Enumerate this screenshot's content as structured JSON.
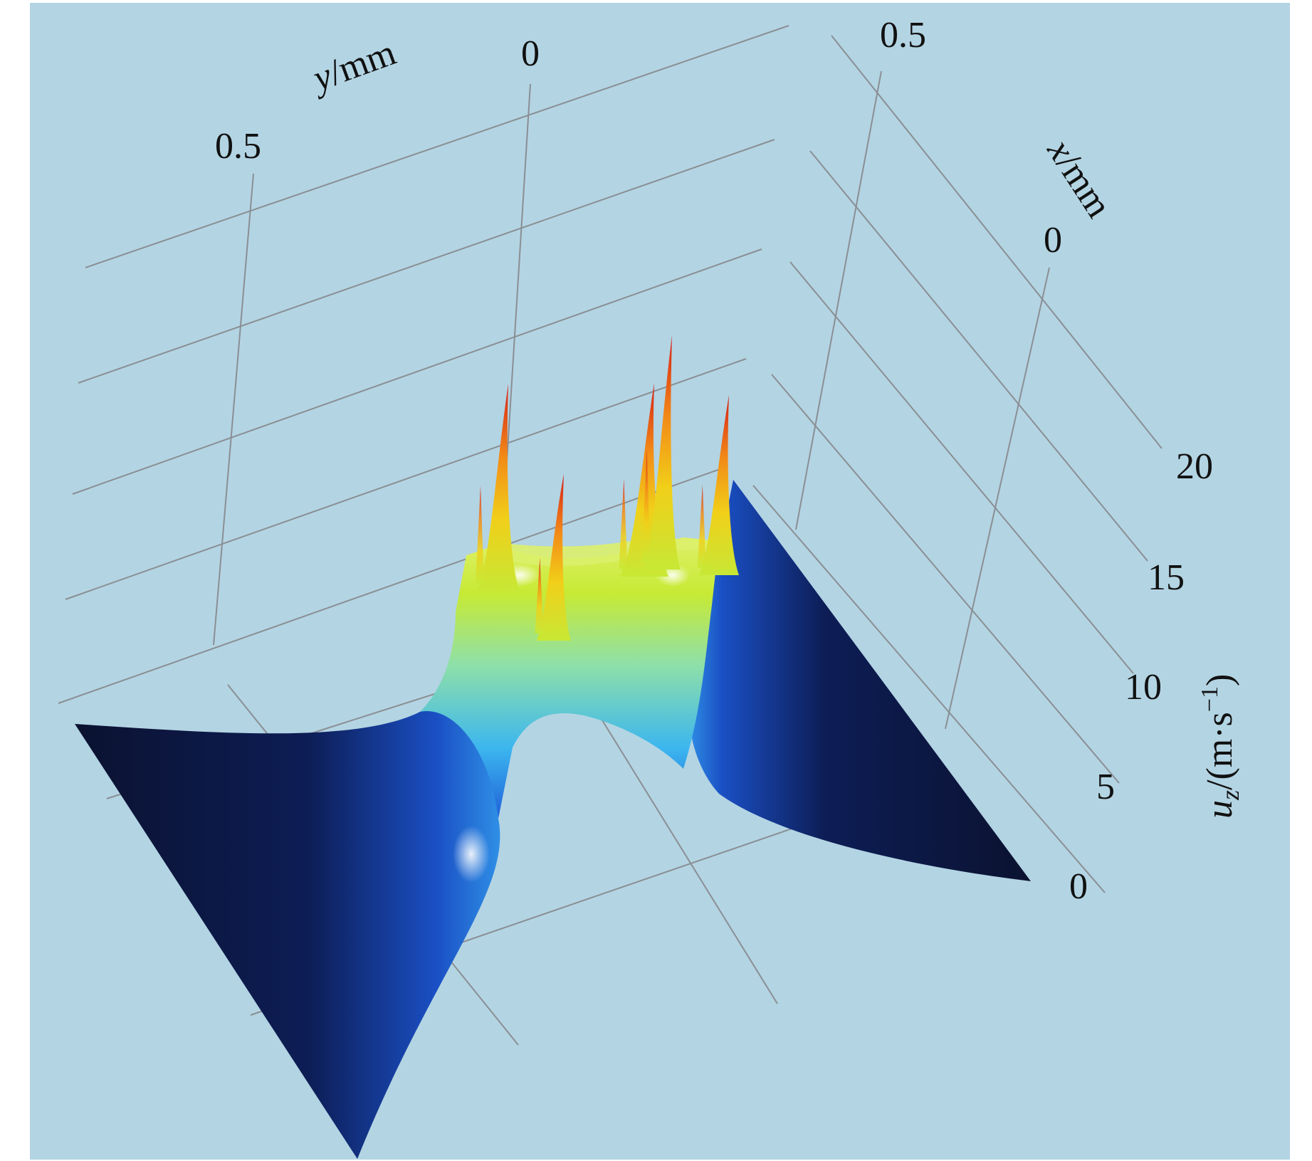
{
  "chart_data": {
    "type": "surface3d",
    "colors": {
      "background": "#b3d4e3",
      "grid": "#8a8f94",
      "low": "#0b1230",
      "mid": "#3ba7e8",
      "midhigh": "#c9ea2a",
      "high": "#d8231a"
    },
    "x_axis": {
      "label_var": "x",
      "label_unit": "/mm",
      "ticks": [
        "0.5",
        "0"
      ]
    },
    "y_axis": {
      "label_var": "y",
      "label_unit": "/mm",
      "ticks": [
        "0.5",
        "0"
      ]
    },
    "z_axis": {
      "label_var": "u",
      "label_sub": "z",
      "label_unit_open": "/(m·s",
      "label_sup": "−1",
      "label_unit_close": ")",
      "ticks": [
        "0",
        "5",
        "10",
        "15",
        "20"
      ],
      "range": [
        0,
        20
      ]
    },
    "grid": true,
    "plateau_value": 11,
    "peaks": [
      {
        "value": 20
      },
      {
        "value": 17
      },
      {
        "value": 19
      },
      {
        "value": 22
      },
      {
        "value": 18
      }
    ]
  }
}
